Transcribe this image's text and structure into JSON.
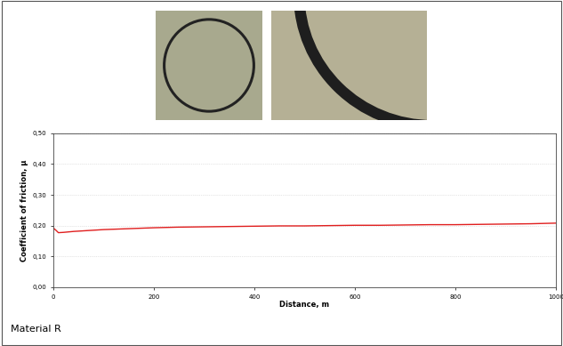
{
  "chart_data": {
    "type": "line",
    "x": [
      0,
      5,
      10,
      20,
      40,
      60,
      80,
      100,
      150,
      200,
      250,
      300,
      350,
      400,
      450,
      500,
      550,
      600,
      650,
      700,
      750,
      800,
      850,
      900,
      950,
      1000
    ],
    "values": [
      0.192,
      0.185,
      0.177,
      0.178,
      0.181,
      0.183,
      0.185,
      0.187,
      0.19,
      0.193,
      0.195,
      0.196,
      0.197,
      0.198,
      0.199,
      0.199,
      0.2,
      0.201,
      0.201,
      0.202,
      0.203,
      0.203,
      0.204,
      0.205,
      0.206,
      0.208
    ],
    "color": "#e01e1e",
    "x_label": "Distance, m",
    "y_label": "Coefficient of friction, μ",
    "xlim": [
      0,
      1000
    ],
    "xticks": [
      0,
      200,
      400,
      600,
      800,
      1000
    ],
    "ylim": [
      0.0,
      0.5
    ],
    "yticks": [
      {
        "value": 0.0,
        "label": "0,00"
      },
      {
        "value": 0.1,
        "label": "0,10"
      },
      {
        "value": 0.2,
        "label": "0,20"
      },
      {
        "value": 0.3,
        "label": "0,30"
      },
      {
        "value": 0.4,
        "label": "0,40"
      },
      {
        "value": 0.5,
        "label": "0,50"
      }
    ],
    "grid": true,
    "annotations": [
      "Material R"
    ]
  }
}
